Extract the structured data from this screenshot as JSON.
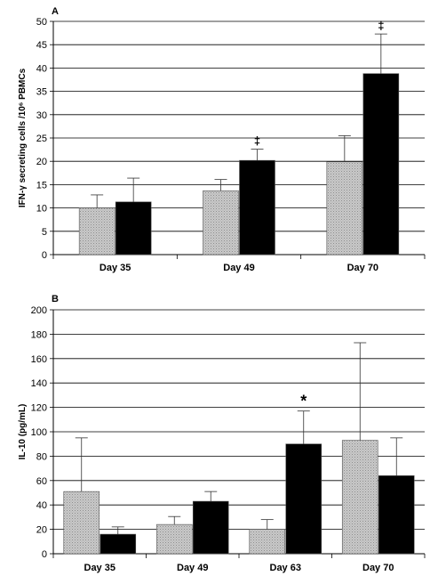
{
  "chart_data": [
    {
      "panel_label": "A",
      "type": "bar",
      "ylabel": "IFN-γ secreting cells /10⁶ PBMCs",
      "xlabel": "",
      "ylim": [
        0,
        50
      ],
      "yticks": [
        0,
        5,
        10,
        15,
        20,
        25,
        30,
        35,
        40,
        45,
        50
      ],
      "categories": [
        "Day 35",
        "Day 49",
        "Day 70"
      ],
      "grid": true,
      "legend": "none",
      "series": [
        {
          "fill": "#bdbdbd",
          "values": [
            10,
            13.7,
            19.9
          ],
          "errors": [
            2.8,
            2.4,
            5.6
          ]
        },
        {
          "fill": "#000000",
          "values": [
            11.3,
            20.2,
            38.8
          ],
          "errors": [
            5.1,
            2.4,
            8.5
          ]
        }
      ],
      "annotations": [
        {
          "category": "Day 49",
          "series": 1,
          "text": "‡"
        },
        {
          "category": "Day 70",
          "series": 1,
          "text": "‡"
        }
      ]
    },
    {
      "panel_label": "B",
      "type": "bar",
      "ylabel": "IL-10 (pg/mL)",
      "xlabel": "",
      "ylim": [
        0,
        200
      ],
      "yticks": [
        0,
        20,
        40,
        60,
        80,
        100,
        120,
        140,
        160,
        180,
        200
      ],
      "categories": [
        "Day 35",
        "Day 49",
        "Day 63",
        "Day 70"
      ],
      "grid": true,
      "legend": "none",
      "series": [
        {
          "fill": "#bdbdbd",
          "values": [
            51,
            24,
            20,
            93
          ],
          "errors": [
            44,
            6.5,
            8,
            80
          ]
        },
        {
          "fill": "#000000",
          "values": [
            16,
            43,
            90,
            64
          ],
          "errors": [
            6,
            8,
            27,
            31
          ]
        }
      ],
      "annotations": [
        {
          "category": "Day 63",
          "series": 1,
          "text": "*"
        }
      ]
    }
  ]
}
